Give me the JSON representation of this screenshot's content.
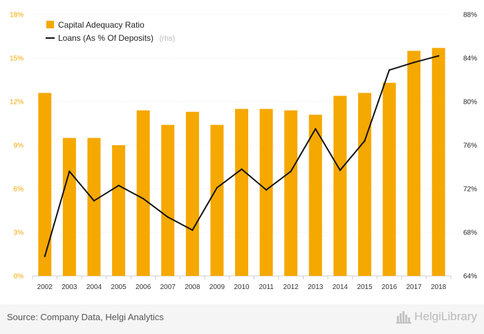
{
  "chart_data": {
    "type": "bar",
    "categories": [
      "2002",
      "2003",
      "2004",
      "2005",
      "2006",
      "2007",
      "2008",
      "2009",
      "2010",
      "2011",
      "2012",
      "2013",
      "2014",
      "2015",
      "2016",
      "2017",
      "2018"
    ],
    "series": [
      {
        "name": "Capital Adequacy Ratio",
        "type": "bar",
        "axis": "left",
        "color": "#f5a800",
        "values": [
          12.6,
          9.5,
          9.5,
          9.0,
          11.4,
          10.4,
          11.3,
          10.4,
          11.5,
          11.5,
          11.4,
          11.1,
          12.4,
          12.6,
          13.3,
          15.5,
          15.7
        ]
      },
      {
        "name": "Loans (As % Of Deposits)",
        "type": "line",
        "axis": "right",
        "color": "#111111",
        "values": [
          65.8,
          73.6,
          70.9,
          72.3,
          71.1,
          69.4,
          68.2,
          72.1,
          73.8,
          71.9,
          73.6,
          77.5,
          73.7,
          76.4,
          82.9,
          83.6,
          84.2
        ]
      }
    ],
    "y_left": {
      "ticks": [
        "0%",
        "3%",
        "6%",
        "9%",
        "12%",
        "15%",
        "18%"
      ],
      "ylim": [
        0,
        18
      ],
      "tick_color": "#f5a500"
    },
    "y_right": {
      "ticks": [
        "64%",
        "68%",
        "72%",
        "76%",
        "80%",
        "84%",
        "88%"
      ],
      "ylim": [
        64,
        88
      ]
    },
    "legend": {
      "position": "top-left",
      "items": [
        {
          "label": "Capital Adequacy Ratio",
          "suffix": "",
          "marker": "square",
          "color": "#f5a800"
        },
        {
          "label": "Loans (As % Of Deposits)",
          "suffix": "(rhs)",
          "marker": "line",
          "color": "#111111"
        }
      ]
    },
    "grid": true
  },
  "footer": {
    "source": "Source: Company Data, Helgi Analytics",
    "brand": "HelgiLibrary"
  }
}
